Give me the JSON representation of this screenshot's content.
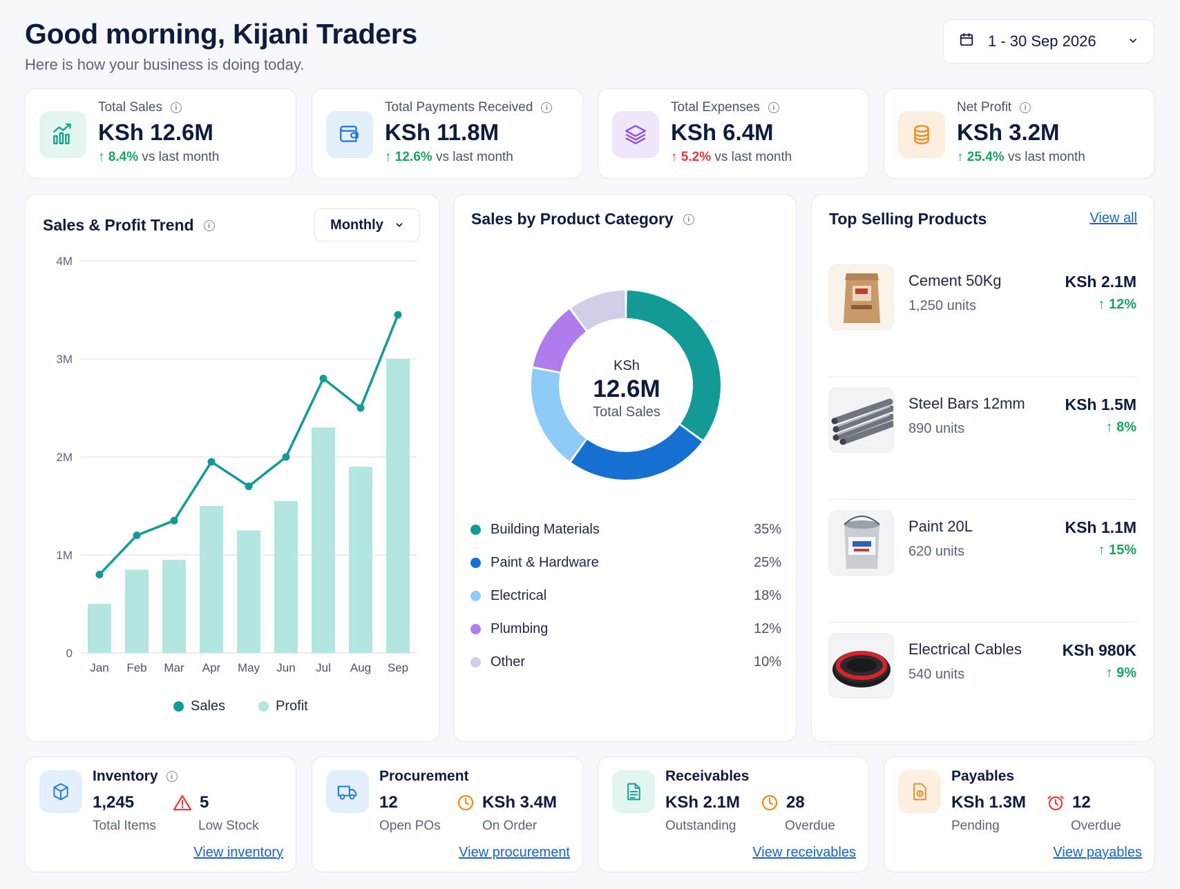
{
  "header": {
    "greeting": "Good morning, Kijani Traders",
    "subtitle": "Here is how your business is doing today."
  },
  "date_range": {
    "label": "1 - 30 Sep 2026",
    "icon": "calendar-icon"
  },
  "kpis": [
    {
      "label": "Total Sales",
      "value": "KSh 12.6M",
      "change": "8.4%",
      "direction": "up",
      "suffix": "vs last month",
      "icon": "chart-growth-icon",
      "color": "#14a08c"
    },
    {
      "label": "Total Payments Received",
      "value": "KSh 11.8M",
      "change": "12.6%",
      "direction": "up",
      "suffix": "vs last month",
      "icon": "wallet-icon",
      "color": "#1f7ae0"
    },
    {
      "label": "Total Expenses",
      "value": "KSh 6.4M",
      "change": "5.2%",
      "direction": "down",
      "suffix": "vs last month",
      "icon": "layers-icon",
      "color": "#8a4ee0"
    },
    {
      "label": "Net Profit",
      "value": "KSh 3.2M",
      "change": "25.4%",
      "direction": "up",
      "suffix": "vs last month",
      "icon": "coins-icon",
      "color": "#f08a1c"
    }
  ],
  "trend": {
    "title": "Sales & Profit Trend",
    "period_button": "Monthly",
    "legend": {
      "sales": "Sales",
      "profit": "Profit"
    }
  },
  "chart_data": [
    {
      "type": "bar",
      "title": "Sales & Profit Trend",
      "categories": [
        "Jan",
        "Feb",
        "Mar",
        "Apr",
        "May",
        "Jun",
        "Jul",
        "Aug",
        "Sep"
      ],
      "y_ticks": [
        "0",
        "1M",
        "2M",
        "3M",
        "4M"
      ],
      "ylim": [
        0,
        4000000
      ],
      "grid": true,
      "legend_placement": "bottom",
      "series": [
        {
          "name": "Sales",
          "type": "line",
          "color": "#129a97",
          "values": [
            800000,
            1200000,
            1350000,
            1950000,
            1700000,
            2000000,
            2800000,
            2500000,
            3450000
          ]
        },
        {
          "name": "Profit",
          "type": "bar",
          "color": "#b3e6e0",
          "values": [
            500000,
            850000,
            950000,
            1500000,
            1250000,
            1550000,
            2300000,
            1900000,
            3000000
          ]
        }
      ]
    },
    {
      "type": "pie",
      "title": "Sales by Product Category",
      "center_prefix": "KSh",
      "center_value": "12.6M",
      "center_label": "Total Sales",
      "slices": [
        {
          "label": "Building Materials",
          "value": 35,
          "display": "35%",
          "color": "#129a97"
        },
        {
          "label": "Paint & Hardware",
          "value": 25,
          "display": "25%",
          "color": "#1670d1"
        },
        {
          "label": "Electrical",
          "value": 18,
          "display": "18%",
          "color": "#8ecbf6"
        },
        {
          "label": "Plumbing",
          "value": 12,
          "display": "12%",
          "color": "#ae7cec"
        },
        {
          "label": "Other",
          "value": 10,
          "display": "10%",
          "color": "#cfd0e7"
        }
      ]
    }
  ],
  "top_products": {
    "title": "Top Selling Products",
    "view_all": "View all",
    "items": [
      {
        "name": "Cement 50Kg",
        "units": "1,250 units",
        "amount": "KSh 2.1M",
        "change": "12%",
        "image": "cement-bag"
      },
      {
        "name": "Steel Bars 12mm",
        "units": "890 units",
        "amount": "KSh 1.5M",
        "change": "8%",
        "image": "steel-bars"
      },
      {
        "name": "Paint 20L",
        "units": "620 units",
        "amount": "KSh 1.1M",
        "change": "15%",
        "image": "paint-bucket"
      },
      {
        "name": "Electrical Cables",
        "units": "540 units",
        "amount": "KSh 980K",
        "change": "9%",
        "image": "cable-coil"
      }
    ]
  },
  "summaries": [
    {
      "title": "Inventory",
      "has_info": true,
      "icon": "box-icon",
      "color": "#1f7ae0",
      "v1": "1,245",
      "l1": "Total Items",
      "v2": "5",
      "l2": "Low Stock",
      "v2_icon": "warning-icon",
      "link": "View inventory"
    },
    {
      "title": "Procurement",
      "has_info": false,
      "icon": "truck-icon",
      "color": "#1f7ae0",
      "v1": "12",
      "l1": "Open POs",
      "v2": "KSh 3.4M",
      "l2": "On Order",
      "v2_icon": "clock-icon",
      "link": "View procurement"
    },
    {
      "title": "Receivables",
      "has_info": false,
      "icon": "document-icon",
      "color": "#14a08c",
      "v1": "KSh 2.1M",
      "l1": "Outstanding",
      "v2": "28",
      "l2": "Overdue",
      "v2_icon": "clock-icon",
      "link": "View receivables"
    },
    {
      "title": "Payables",
      "has_info": false,
      "icon": "bill-icon",
      "color": "#f08a1c",
      "v1": "KSh 1.3M",
      "l1": "Pending",
      "v2": "12",
      "l2": "Overdue",
      "v2_icon": "alarm-icon",
      "link": "View payables"
    }
  ]
}
